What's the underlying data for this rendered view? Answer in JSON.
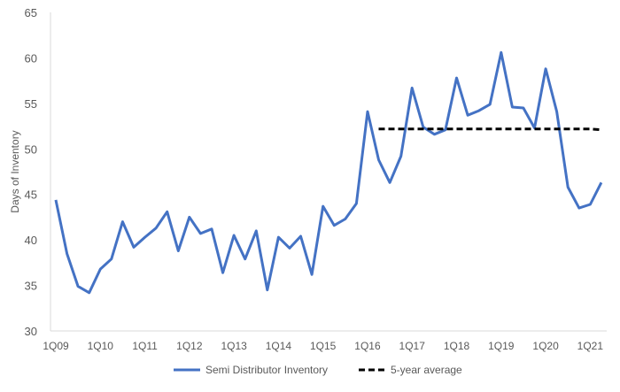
{
  "chart_data": {
    "type": "line",
    "title": "",
    "xlabel": "",
    "ylabel": "Days of Inventory",
    "ylim": [
      30,
      65
    ],
    "yticks": [
      30,
      35,
      40,
      45,
      50,
      55,
      60,
      65
    ],
    "grid": false,
    "legend_position": "bottom",
    "x": [
      "1Q09",
      "2Q09",
      "3Q09",
      "4Q09",
      "1Q10",
      "2Q10",
      "3Q10",
      "4Q10",
      "1Q11",
      "2Q11",
      "3Q11",
      "4Q11",
      "1Q12",
      "2Q12",
      "3Q12",
      "4Q12",
      "1Q13",
      "2Q13",
      "3Q13",
      "4Q13",
      "1Q14",
      "2Q14",
      "3Q14",
      "4Q14",
      "1Q15",
      "2Q15",
      "3Q15",
      "4Q15",
      "1Q16",
      "2Q16",
      "3Q16",
      "4Q16",
      "1Q17",
      "2Q17",
      "3Q17",
      "4Q17",
      "1Q18",
      "2Q18",
      "3Q18",
      "4Q18",
      "1Q19",
      "2Q19",
      "3Q19",
      "4Q19",
      "1Q20",
      "2Q20",
      "3Q20",
      "4Q20",
      "1Q21",
      "2Q21"
    ],
    "xtick_labels": [
      "1Q09",
      "1Q10",
      "1Q11",
      "1Q12",
      "1Q13",
      "1Q14",
      "1Q15",
      "1Q16",
      "1Q17",
      "1Q18",
      "1Q19",
      "1Q20",
      "1Q21"
    ],
    "series": [
      {
        "name": "Semi Distributor Inventory",
        "color": "#4472C4",
        "style": "solid",
        "values": [
          44.4,
          38.5,
          34.9,
          34.2,
          36.8,
          37.9,
          42.0,
          39.2,
          40.3,
          41.3,
          43.1,
          38.8,
          42.5,
          40.7,
          41.2,
          36.4,
          40.5,
          37.9,
          41.0,
          34.5,
          40.3,
          39.1,
          40.4,
          36.2,
          43.7,
          41.6,
          42.3,
          44.0,
          54.1,
          48.8,
          46.3,
          49.2,
          56.7,
          52.4,
          51.6,
          52.1,
          57.8,
          53.7,
          54.2,
          54.9,
          60.6,
          54.6,
          54.5,
          52.3,
          58.8,
          54.1,
          45.8,
          43.5,
          43.9,
          46.3
        ]
      },
      {
        "name": "5-year average",
        "color": "#000000",
        "style": "dashed",
        "values": [
          null,
          null,
          null,
          null,
          null,
          null,
          null,
          null,
          null,
          null,
          null,
          null,
          null,
          null,
          null,
          null,
          null,
          null,
          null,
          null,
          null,
          null,
          null,
          null,
          null,
          null,
          null,
          null,
          null,
          52.2,
          52.2,
          52.2,
          52.2,
          52.2,
          52.2,
          52.2,
          52.2,
          52.2,
          52.2,
          52.2,
          52.2,
          52.2,
          52.2,
          52.2,
          52.2,
          52.2,
          52.2,
          52.2,
          52.2,
          52.1
        ]
      }
    ]
  }
}
